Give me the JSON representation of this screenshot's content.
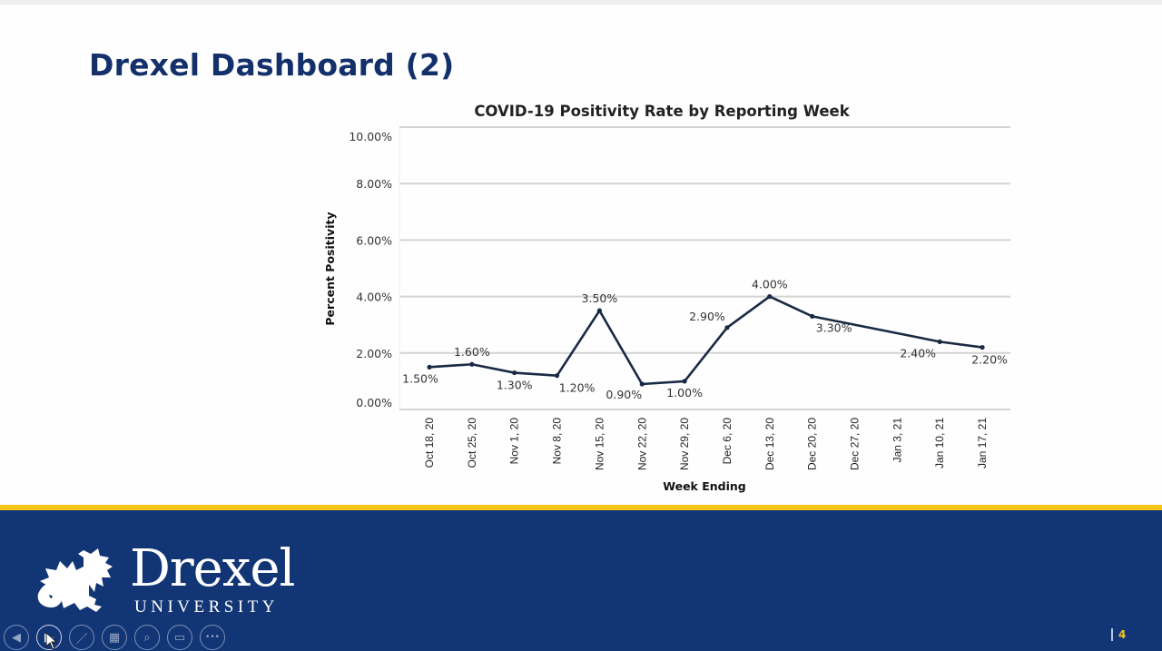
{
  "slide": {
    "title": "Drexel Dashboard (2)",
    "number": "4"
  },
  "footer": {
    "logo_word": "Drexel",
    "logo_sub": "UNIVERSITY",
    "controls": [
      {
        "name": "previous-slide-button",
        "icon": "arrow-left-icon",
        "glyph": "◀"
      },
      {
        "name": "next-slide-button",
        "icon": "arrow-right-icon",
        "glyph": "▶"
      },
      {
        "name": "pen-tool-button",
        "icon": "pen-icon",
        "glyph": "／"
      },
      {
        "name": "see-all-slides-button",
        "icon": "slides-grid-icon",
        "glyph": "▦"
      },
      {
        "name": "zoom-button",
        "icon": "magnifier-icon",
        "glyph": "⌕"
      },
      {
        "name": "subtitles-button",
        "icon": "screen-icon",
        "glyph": "▭"
      },
      {
        "name": "more-options-button",
        "icon": "ellipsis-icon",
        "glyph": "•••"
      }
    ]
  },
  "colors": {
    "title": "#14306b",
    "line": "#1a2a44",
    "grid": "#d4d4d4",
    "footer_navy": "#123576",
    "footer_yellow": "#f5c518"
  },
  "chart_data": {
    "type": "line",
    "title": "COVID-19 Positivity Rate by Reporting Week",
    "xlabel": "Week Ending",
    "ylabel": "Percent Positivity",
    "ylim": [
      0,
      10
    ],
    "yticks": [
      "0.00%",
      "2.00%",
      "4.00%",
      "6.00%",
      "8.00%",
      "10.00%"
    ],
    "grid": true,
    "legend": null,
    "categories": [
      "Oct 18, 20",
      "Oct 25, 20",
      "Nov 1, 20",
      "Nov 8, 20",
      "Nov 15, 20",
      "Nov 22, 20",
      "Nov 29, 20",
      "Dec 6, 20",
      "Dec 13, 20",
      "Dec 20, 20",
      "Dec 27, 20",
      "Jan 3, 21",
      "Jan 10, 21",
      "Jan 17, 21"
    ],
    "series": [
      {
        "name": "Percent Positivity",
        "values": [
          1.5,
          1.6,
          1.3,
          1.2,
          3.5,
          0.9,
          1.0,
          2.9,
          4.0,
          3.3,
          null,
          null,
          2.4,
          2.2
        ],
        "labels": [
          "1.50%",
          "1.60%",
          "1.30%",
          "1.20%",
          "3.50%",
          "0.90%",
          "1.00%",
          "2.90%",
          "4.00%",
          "3.30%",
          "",
          "",
          "2.40%",
          "2.20%"
        ]
      }
    ]
  }
}
